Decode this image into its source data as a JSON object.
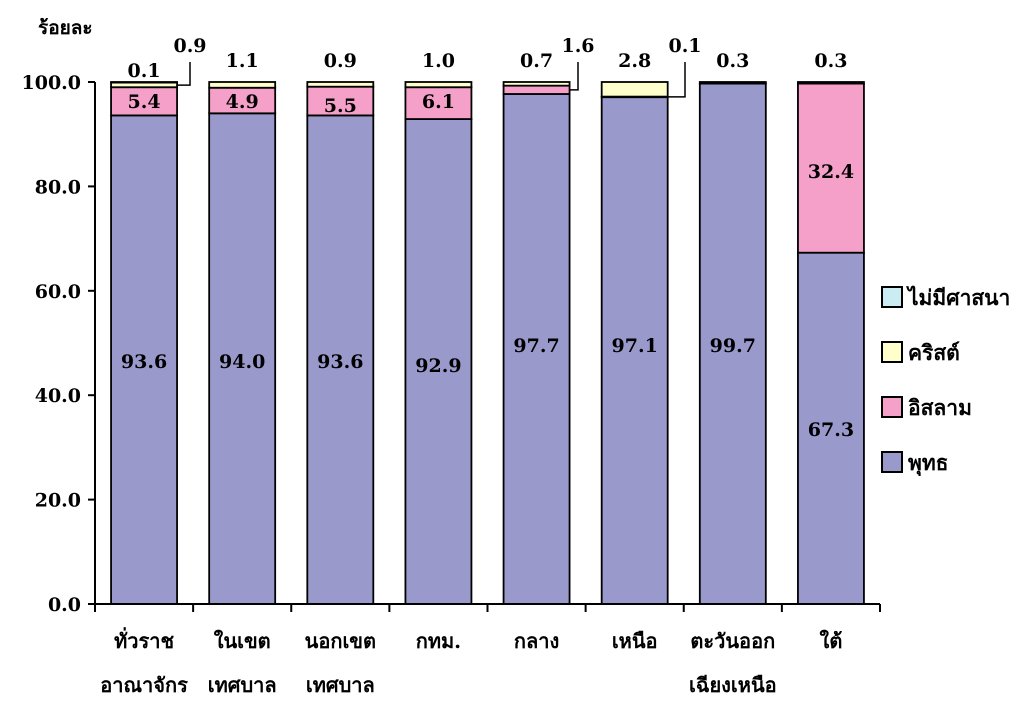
{
  "chart_data": {
    "type": "bar",
    "stacked": true,
    "ylabel": "ร้อยละ",
    "xlabel": "",
    "ylim": [
      0,
      100
    ],
    "yticks": [
      "0.0",
      "20.0",
      "40.0",
      "60.0",
      "80.0",
      "100.0"
    ],
    "categories": [
      [
        "ทั่วราช",
        "อาณาจักร"
      ],
      [
        "ในเขต",
        "เทศบาล"
      ],
      [
        "นอกเขต",
        "เทศบาล"
      ],
      [
        "กทม."
      ],
      [
        "กลาง"
      ],
      [
        "เหนือ"
      ],
      [
        "ตะวันออก",
        "เฉียงเหนือ"
      ],
      [
        "ใต้"
      ]
    ],
    "series": [
      {
        "name": "พุทธ",
        "color": "#9999cc",
        "values": [
          93.6,
          94.0,
          93.6,
          92.9,
          97.7,
          97.1,
          99.7,
          67.3
        ],
        "labels": [
          "93.6",
          "94.0",
          "93.6",
          "92.9",
          "97.7",
          "97.1",
          "99.7",
          "67.3"
        ]
      },
      {
        "name": "อิสลาม",
        "color": "#f4a0c8",
        "values": [
          5.4,
          4.9,
          5.5,
          6.1,
          1.6,
          0.1,
          0.0,
          32.4
        ],
        "labels": [
          "5.4",
          "4.9",
          "5.5",
          "6.1",
          "1.6",
          "0.1",
          "",
          "32.4"
        ]
      },
      {
        "name": "คริสต์",
        "color": "#ffffcc",
        "values": [
          0.9,
          1.1,
          0.9,
          1.0,
          0.7,
          2.8,
          0.3,
          0.3
        ],
        "labels": [
          "0.9",
          "1.1",
          "0.9",
          "1.0",
          "0.7",
          "2.8",
          "0.3",
          "0.3"
        ]
      },
      {
        "name": "ไม่มีศาสนา",
        "color": "#ccecf4",
        "values": [
          0.1,
          0.0,
          0.0,
          0.0,
          0.0,
          0.0,
          0.0,
          0.0
        ],
        "labels": [
          "0.1",
          "",
          "",
          "",
          "",
          "",
          "",
          ""
        ]
      }
    ],
    "legend": {
      "placement": "right",
      "order": [
        "ไม่มีศาสนา",
        "คริสต์",
        "อิสลาม",
        "พุทธ"
      ]
    },
    "grid": false
  }
}
